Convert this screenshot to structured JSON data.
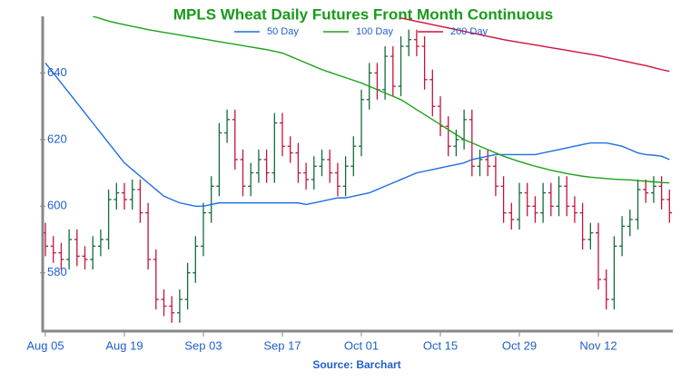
{
  "chart_data": {
    "type": "ohlc",
    "title": "MPLS Wheat Daily Futures Front Month Continuous",
    "source": "Source: Barchart",
    "categories": [
      "Aug 05",
      null,
      null,
      null,
      null,
      null,
      null,
      null,
      null,
      null,
      "Aug 19",
      null,
      null,
      null,
      null,
      null,
      null,
      null,
      null,
      null,
      "Sep 03",
      null,
      null,
      null,
      null,
      null,
      null,
      null,
      null,
      null,
      "Sep 17",
      null,
      null,
      null,
      null,
      null,
      null,
      null,
      null,
      null,
      "Oct 01",
      null,
      null,
      null,
      null,
      null,
      null,
      null,
      null,
      null,
      "Oct 15",
      null,
      null,
      null,
      null,
      null,
      null,
      null,
      null,
      null,
      "Oct 29",
      null,
      null,
      null,
      null,
      null,
      null,
      null,
      null,
      null,
      "Nov 12",
      null,
      null,
      null,
      null,
      null,
      null,
      null,
      null,
      null
    ],
    "open": [
      592,
      588,
      586,
      584,
      590,
      585,
      584,
      588,
      590,
      602,
      604,
      602,
      605,
      598,
      584,
      572,
      570,
      568,
      572,
      580,
      588,
      598,
      606,
      622,
      626,
      614,
      606,
      610,
      614,
      610,
      625,
      618,
      616,
      610,
      608,
      612,
      614,
      610,
      606,
      612,
      618,
      632,
      640,
      635,
      645,
      636,
      648,
      650,
      648,
      638,
      630,
      624,
      618,
      620,
      626,
      612,
      614,
      612,
      606,
      598,
      596,
      604,
      600,
      598,
      604,
      600,
      606,
      600,
      598,
      590,
      592,
      578,
      572,
      588,
      594,
      596,
      605,
      604,
      606,
      602
    ],
    "high": [
      595,
      591,
      589,
      593,
      593,
      588,
      591,
      593,
      605,
      607,
      607,
      608,
      608,
      601,
      587,
      575,
      573,
      575,
      583,
      591,
      601,
      609,
      625,
      629,
      629,
      617,
      613,
      617,
      617,
      628,
      628,
      621,
      619,
      613,
      615,
      617,
      617,
      613,
      615,
      621,
      635,
      643,
      643,
      648,
      648,
      651,
      653,
      653,
      651,
      641,
      633,
      627,
      623,
      629,
      629,
      617,
      617,
      615,
      609,
      601,
      607,
      607,
      603,
      607,
      607,
      609,
      609,
      603,
      601,
      595,
      595,
      581,
      591,
      597,
      599,
      608,
      608,
      609,
      609,
      605
    ],
    "low": [
      585,
      583,
      581,
      581,
      582,
      581,
      581,
      585,
      587,
      599,
      599,
      599,
      595,
      581,
      569,
      567,
      565,
      565,
      569,
      577,
      585,
      595,
      603,
      619,
      611,
      603,
      603,
      607,
      607,
      607,
      615,
      613,
      607,
      605,
      605,
      609,
      607,
      603,
      603,
      609,
      615,
      629,
      632,
      632,
      633,
      633,
      645,
      645,
      635,
      627,
      621,
      615,
      615,
      617,
      609,
      609,
      609,
      603,
      595,
      593,
      593,
      597,
      595,
      595,
      597,
      597,
      597,
      595,
      587,
      587,
      575,
      569,
      569,
      585,
      591,
      593,
      601,
      601,
      599,
      595
    ],
    "close": [
      588,
      586,
      584,
      590,
      585,
      584,
      588,
      590,
      602,
      604,
      602,
      605,
      598,
      584,
      572,
      570,
      568,
      572,
      580,
      588,
      598,
      606,
      622,
      626,
      614,
      606,
      610,
      614,
      610,
      625,
      618,
      616,
      610,
      608,
      612,
      614,
      610,
      606,
      612,
      618,
      632,
      640,
      635,
      645,
      636,
      648,
      650,
      648,
      638,
      630,
      624,
      618,
      620,
      626,
      612,
      614,
      612,
      606,
      598,
      596,
      604,
      600,
      598,
      604,
      600,
      606,
      600,
      598,
      590,
      592,
      578,
      572,
      588,
      594,
      596,
      605,
      604,
      606,
      602,
      598
    ],
    "up_color": "#136b3a",
    "down_color": "#c3143e",
    "series": [
      {
        "name": "50 Day",
        "color": "#1f6fe0",
        "values": [
          643,
          640,
          637,
          634,
          631,
          628,
          625,
          622,
          619,
          616,
          613,
          611,
          609,
          607,
          605,
          603,
          602,
          601,
          600.5,
          600,
          600,
          600.5,
          601,
          601,
          601,
          601,
          601,
          601,
          601,
          601,
          601,
          601,
          601,
          600.5,
          601,
          601.5,
          602,
          602.5,
          602.5,
          603,
          603.5,
          604,
          605,
          606,
          607,
          608,
          609,
          610,
          610.5,
          611,
          611.5,
          612,
          612.5,
          613,
          614,
          614.5,
          615,
          615.5,
          615.5,
          615.5,
          615.5,
          615.5,
          615.5,
          616,
          616.5,
          617,
          617.5,
          618,
          618.5,
          619,
          619,
          619,
          618.5,
          618,
          617,
          616,
          615.5,
          615.3,
          615,
          614
        ]
      },
      {
        "name": "100 Day",
        "color": "#1ca21c",
        "values": [
          null,
          null,
          null,
          null,
          null,
          null,
          657,
          656.3,
          655.6,
          655,
          654.5,
          654,
          653.5,
          653,
          652.6,
          652.2,
          651.8,
          651.4,
          651,
          650.6,
          650.2,
          649.8,
          649.4,
          649,
          648.6,
          648.2,
          647.8,
          647.4,
          647,
          646.5,
          646,
          645,
          644,
          643,
          642,
          641,
          640.2,
          639.4,
          638.6,
          637.8,
          637,
          636,
          635,
          634,
          633,
          632,
          630.5,
          629,
          627.5,
          626,
          624.5,
          623,
          621.5,
          620,
          619,
          618,
          617,
          616,
          615,
          614.2,
          613.4,
          612.7,
          612,
          611.4,
          610.8,
          610.3,
          609.8,
          609.4,
          609,
          608.7,
          608.5,
          608.3,
          608.1,
          608,
          607.9,
          607.7,
          607.5,
          607.3,
          607.1,
          607
        ]
      },
      {
        "name": "200 Day",
        "color": "#d0103a",
        "values": [
          null,
          null,
          null,
          null,
          null,
          null,
          null,
          null,
          null,
          null,
          null,
          null,
          null,
          null,
          null,
          null,
          null,
          null,
          null,
          null,
          null,
          null,
          null,
          null,
          null,
          null,
          null,
          null,
          null,
          null,
          null,
          null,
          null,
          null,
          null,
          null,
          null,
          null,
          null,
          null,
          null,
          null,
          null,
          null,
          null,
          656.5,
          656,
          655.5,
          655,
          654.5,
          654,
          653.5,
          653,
          652.5,
          652,
          651.5,
          651,
          650.5,
          650,
          649.6,
          649.2,
          648.8,
          648.4,
          648,
          647.6,
          647.2,
          646.8,
          646.4,
          646,
          645.6,
          645.2,
          644.7,
          644.2,
          643.7,
          643.2,
          642.7,
          642.2,
          641.6,
          641,
          640.5
        ]
      }
    ],
    "ylim": [
      562.5,
      657
    ],
    "yticks": [
      580,
      600,
      620,
      640
    ],
    "legend": "top"
  }
}
